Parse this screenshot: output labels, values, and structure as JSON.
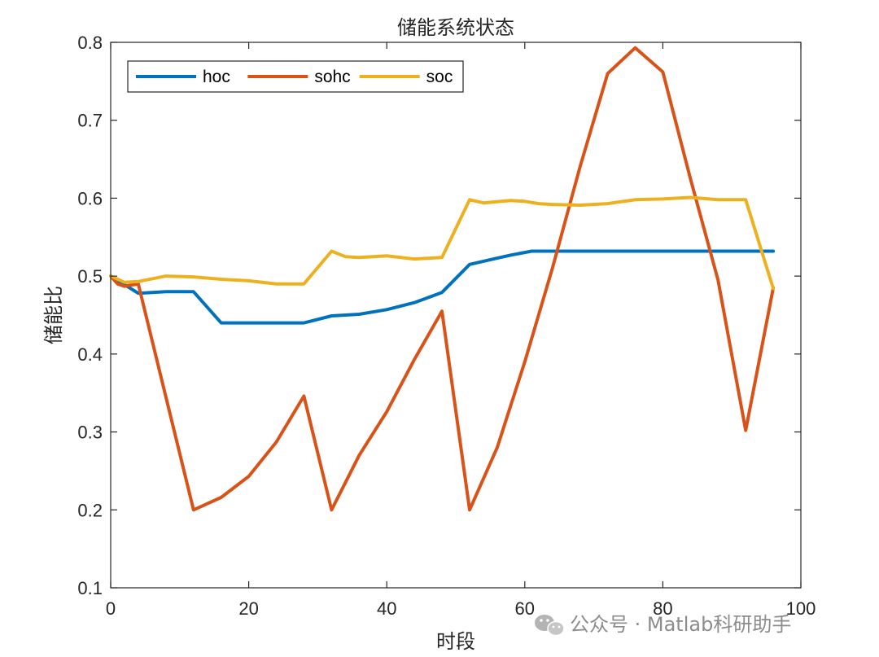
{
  "chart_data": {
    "type": "line",
    "title": "储能系统状态",
    "xlabel": "时段",
    "ylabel": "储能比",
    "xlim": [
      0,
      100
    ],
    "ylim": [
      0.1,
      0.8
    ],
    "xticks": [
      0,
      20,
      40,
      60,
      80,
      100
    ],
    "yticks": [
      0.1,
      0.2,
      0.3,
      0.4,
      0.5,
      0.6,
      0.7,
      0.8
    ],
    "grid": false,
    "legend_location": "top-left",
    "legend_orientation": "horizontal",
    "series": [
      {
        "name": "hoc",
        "color": "#0072BD",
        "points": [
          [
            0,
            0.5
          ],
          [
            4,
            0.478
          ],
          [
            8,
            0.48
          ],
          [
            12,
            0.48
          ],
          [
            16,
            0.44
          ],
          [
            20,
            0.44
          ],
          [
            24,
            0.44
          ],
          [
            28,
            0.44
          ],
          [
            32,
            0.449
          ],
          [
            36,
            0.451
          ],
          [
            40,
            0.457
          ],
          [
            44,
            0.466
          ],
          [
            48,
            0.479
          ],
          [
            52,
            0.515
          ],
          [
            56,
            0.523
          ],
          [
            58,
            0.527
          ],
          [
            61,
            0.532
          ],
          [
            64,
            0.532
          ],
          [
            68,
            0.532
          ],
          [
            72,
            0.532
          ],
          [
            76,
            0.532
          ],
          [
            80,
            0.532
          ],
          [
            84,
            0.532
          ],
          [
            88,
            0.532
          ],
          [
            92,
            0.532
          ],
          [
            96,
            0.532
          ]
        ]
      },
      {
        "name": "sohc",
        "color": "#D95319",
        "points": [
          [
            0,
            0.5
          ],
          [
            1,
            0.49
          ],
          [
            2,
            0.487
          ],
          [
            4,
            0.49
          ],
          [
            8,
            0.345
          ],
          [
            12,
            0.2
          ],
          [
            16,
            0.216
          ],
          [
            20,
            0.243
          ],
          [
            24,
            0.287
          ],
          [
            28,
            0.346
          ],
          [
            32,
            0.2
          ],
          [
            36,
            0.27
          ],
          [
            40,
            0.326
          ],
          [
            44,
            0.393
          ],
          [
            48,
            0.455
          ],
          [
            52,
            0.2
          ],
          [
            56,
            0.28
          ],
          [
            60,
            0.39
          ],
          [
            64,
            0.51
          ],
          [
            68,
            0.64
          ],
          [
            72,
            0.76
          ],
          [
            76,
            0.793
          ],
          [
            80,
            0.762
          ],
          [
            84,
            0.625
          ],
          [
            88,
            0.495
          ],
          [
            92,
            0.302
          ],
          [
            96,
            0.485
          ]
        ]
      },
      {
        "name": "soc",
        "color": "#EDB120",
        "points": [
          [
            0,
            0.5
          ],
          [
            2,
            0.492
          ],
          [
            4,
            0.493
          ],
          [
            8,
            0.5
          ],
          [
            12,
            0.499
          ],
          [
            16,
            0.496
          ],
          [
            20,
            0.494
          ],
          [
            24,
            0.49
          ],
          [
            28,
            0.49
          ],
          [
            32,
            0.532
          ],
          [
            34,
            0.525
          ],
          [
            36,
            0.524
          ],
          [
            40,
            0.526
          ],
          [
            44,
            0.522
          ],
          [
            48,
            0.524
          ],
          [
            52,
            0.598
          ],
          [
            54,
            0.594
          ],
          [
            58,
            0.597
          ],
          [
            60,
            0.596
          ],
          [
            62,
            0.593
          ],
          [
            64,
            0.592
          ],
          [
            68,
            0.591
          ],
          [
            72,
            0.593
          ],
          [
            76,
            0.598
          ],
          [
            80,
            0.599
          ],
          [
            84,
            0.601
          ],
          [
            88,
            0.598
          ],
          [
            92,
            0.598
          ],
          [
            96,
            0.484
          ]
        ]
      }
    ]
  },
  "watermark": {
    "text": "公众号 · Matlab科研助手",
    "icon": "wechat-icon"
  }
}
